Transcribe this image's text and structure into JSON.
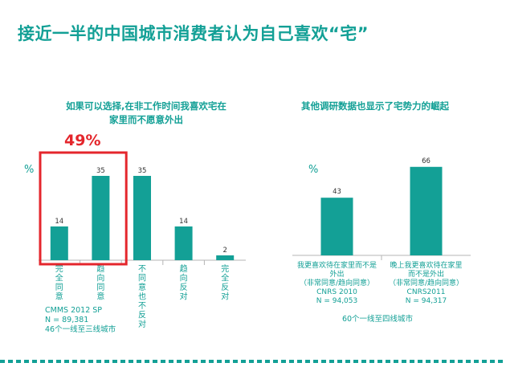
{
  "page": {
    "title": "接近一半的中国城市消费者认为自己喜欢“宅”"
  },
  "left_chart": {
    "title": "如果可以选择,在非工作时间我喜欢宅在家里而不愿意外出",
    "unit": "%",
    "highlight_value": "49%",
    "source_lines": [
      "CMMS 2012 SP",
      "N = 89,381",
      "46个一线至三线城市"
    ]
  },
  "right_chart": {
    "title": "其他调研数据也显示了宅势力的崛起",
    "unit": "%",
    "footer": "60个一线至四线城市"
  },
  "chart_data": [
    {
      "type": "bar",
      "title": "如果可以选择,在非工作时间我喜欢宅在家里而不愿意外出",
      "ylabel": "%",
      "categories": [
        "完全同意",
        "趋向同意",
        "不同意也不反对",
        "趋向反对",
        "完全反对"
      ],
      "values": [
        14,
        35,
        35,
        14,
        2
      ],
      "highlighted_categories": [
        "完全同意",
        "趋向同意"
      ],
      "highlight_label": "49%",
      "ylim": [
        0,
        40
      ],
      "color": "#13a096",
      "highlight_color": "#e4262c"
    },
    {
      "type": "bar",
      "title": "其他调研数据也显示了宅势力的崛起",
      "ylabel": "%",
      "categories": [
        "我更喜欢待在家里而不是外出 (非常同意/趋向同意) CNRS 2010 N = 94,053",
        "晚上我更喜欢待在家里而不是外出 (非常同意/趋向同意) CNRS2011 N = 94,317"
      ],
      "category_lines": [
        [
          "我更喜欢待在家里而不是",
          "外出",
          "（非常同意/趋向同意）",
          "CNRS 2010",
          "N = 94,053"
        ],
        [
          "晚上我更喜欢待在家里",
          "而不是外出",
          "（非常同意/趋向同意）",
          "CNRS2011",
          "N = 94,317"
        ]
      ],
      "values": [
        43,
        66
      ],
      "ylim": [
        0,
        70
      ],
      "color": "#13a096"
    }
  ],
  "colors": {
    "accent": "#13a096",
    "highlight": "#e4262c",
    "axis": "#b5b5b5"
  }
}
